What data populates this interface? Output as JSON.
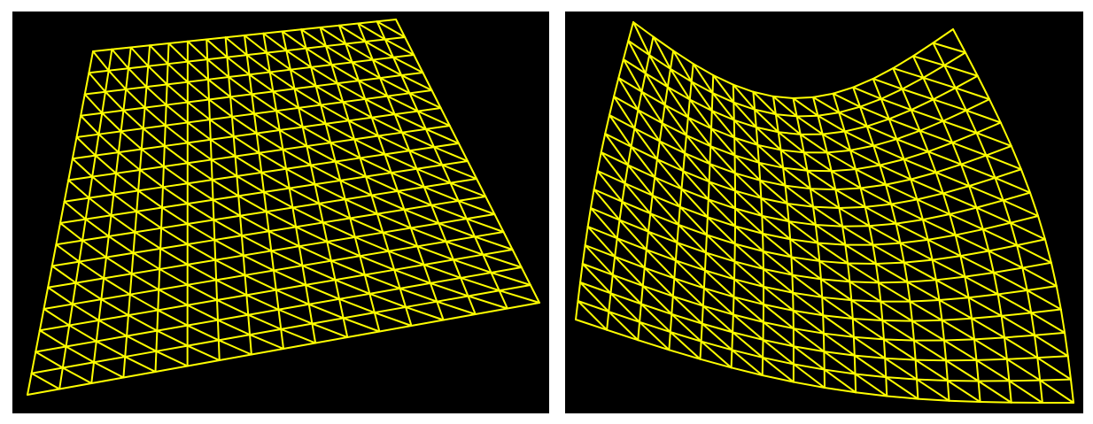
{
  "colors": {
    "background": "#000000",
    "mesh_wire": "#ffff00",
    "page": "#ffffff"
  },
  "panels": [
    {
      "id": "panel-left",
      "name": "flat-mesh-view",
      "mesh": "flat-triangulated-grid",
      "grid_cells": [
        16,
        16
      ]
    },
    {
      "id": "panel-right",
      "name": "deformed-mesh-view",
      "mesh": "curved-triangulated-grid",
      "grid_cells": [
        16,
        16
      ]
    }
  ]
}
